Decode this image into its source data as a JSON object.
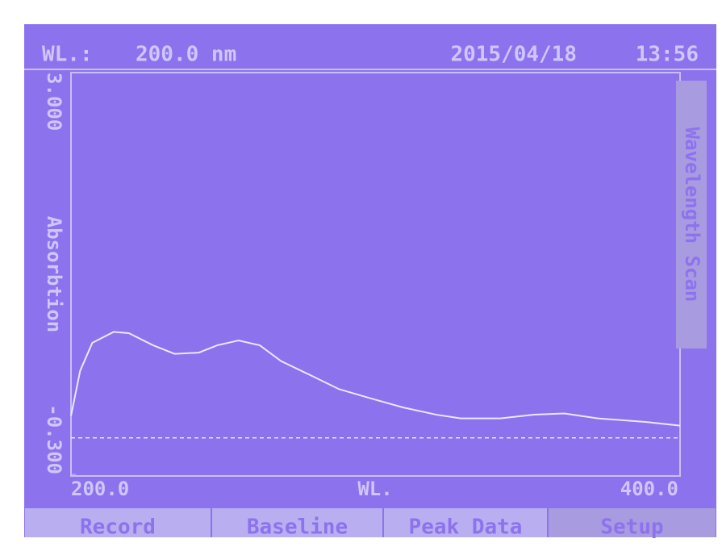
{
  "status": {
    "label": "WL.:",
    "wavelength": "200.0 nm",
    "date": "2015/04/18",
    "time": "13:56"
  },
  "buttons": [
    "Record",
    "Baseline",
    "Peak Data",
    "Setup"
  ],
  "chart_data": {
    "type": "line",
    "title": "Wavelength Scan",
    "xlabel": "WL.",
    "ylabel": "Absorbtion",
    "x": [
      200,
      203,
      207,
      214,
      219,
      227,
      234,
      242,
      248,
      255,
      262,
      269,
      279,
      288,
      299,
      309,
      320,
      328,
      341,
      352,
      362,
      373,
      389,
      400
    ],
    "series": [
      {
        "color": "#ece8ff",
        "values": [
          0.18,
          0.55,
          0.78,
          0.87,
          0.86,
          0.76,
          0.69,
          0.7,
          0.76,
          0.8,
          0.76,
          0.63,
          0.51,
          0.4,
          0.32,
          0.25,
          0.19,
          0.16,
          0.16,
          0.19,
          0.2,
          0.16,
          0.13,
          0.1
        ]
      }
    ],
    "reference_line": 0,
    "xlim": [
      200,
      400
    ],
    "ylim": [
      -0.3,
      3.0
    ],
    "xticks": [
      {
        "value": 200,
        "label": "200.0"
      },
      {
        "value": 400,
        "label": "400.0"
      }
    ],
    "yticks": [
      {
        "value": 3.0,
        "label": "3.000"
      },
      {
        "value": -0.3,
        "label": "-0.300"
      }
    ]
  }
}
